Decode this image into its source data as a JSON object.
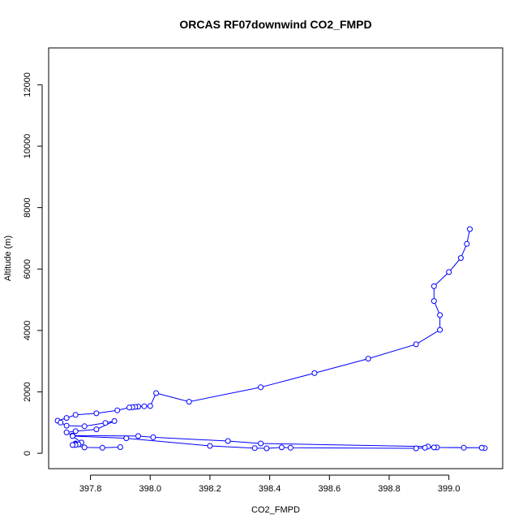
{
  "chart_data": {
    "type": "line",
    "title": "ORCAS RF07downwind CO2_FMPD",
    "xlabel": "CO2_FMPD",
    "ylabel": "Altitude (m)",
    "xlim": [
      397.66,
      399.18
    ],
    "ylim": [
      -500,
      13200
    ],
    "xticks": [
      397.8,
      398.0,
      398.2,
      398.4,
      398.6,
      398.8,
      399.0
    ],
    "xtick_labels": [
      "397.8",
      "398.0",
      "398.2",
      "398.4",
      "398.6",
      "398.8",
      "399.0"
    ],
    "yticks": [
      0,
      2000,
      4000,
      6000,
      8000,
      10000,
      12000
    ],
    "ytick_labels": [
      "0",
      "2000",
      "4000",
      "6000",
      "8000",
      "10000",
      "12000"
    ],
    "grid": false,
    "legend": "none",
    "series_color": "#0000ff",
    "marker": "open-circle",
    "series": [
      {
        "x": [
          399.07,
          399.06,
          399.04,
          399.0,
          398.95,
          398.95,
          398.97,
          398.97,
          398.89,
          398.73,
          398.55,
          398.37,
          398.13,
          398.02,
          398.0,
          397.98,
          397.96,
          397.95,
          397.94,
          397.93,
          397.89,
          397.82,
          397.75,
          397.72,
          397.69,
          397.7,
          397.72,
          397.78,
          397.85,
          397.88,
          397.82,
          397.75,
          397.72,
          397.74,
          397.96,
          398.01,
          398.26,
          398.37,
          398.93,
          398.96,
          399.11,
          399.12,
          399.11,
          399.05,
          398.95,
          398.92,
          398.89,
          398.47,
          398.44,
          398.39,
          398.35,
          398.2,
          397.92,
          397.74,
          397.77,
          397.75,
          397.75,
          397.76,
          397.75,
          397.74,
          397.78,
          397.84,
          397.9
        ],
        "y": [
          7300,
          6820,
          6360,
          5900,
          5440,
          4960,
          4500,
          4020,
          3550,
          3080,
          2610,
          2150,
          1680,
          1960,
          1540,
          1530,
          1520,
          1510,
          1500,
          1490,
          1400,
          1300,
          1250,
          1150,
          1060,
          1000,
          900,
          880,
          990,
          1050,
          780,
          720,
          680,
          580,
          560,
          520,
          400,
          320,
          220,
          190,
          180,
          170,
          180,
          180,
          190,
          180,
          160,
          180,
          190,
          160,
          170,
          240,
          490,
          560,
          350,
          320,
          300,
          290,
          270,
          270,
          190,
          180,
          200
        ]
      }
    ]
  }
}
